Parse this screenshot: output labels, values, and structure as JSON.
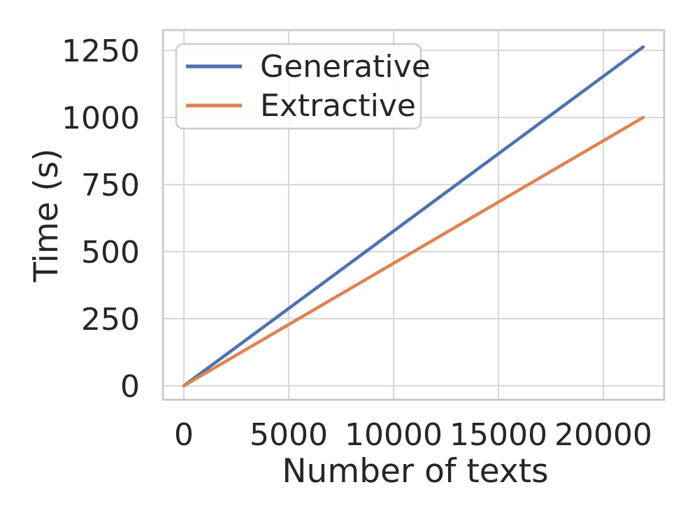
{
  "figure": {
    "background_color": "#ffffff",
    "text_color": "#262626",
    "grid_color": "#d9d9d9",
    "spine_color": "#c9c9c9"
  },
  "chart_data": {
    "type": "line",
    "title": "",
    "xlabel": "Number of texts",
    "ylabel": "Time (s)",
    "x": [
      0,
      21900
    ],
    "series": [
      {
        "name": "Generative",
        "color": "#4c72b0",
        "values": [
          0,
          1263
        ]
      },
      {
        "name": "Extractive",
        "color": "#dd8452",
        "values": [
          0,
          1000
        ]
      }
    ],
    "xlim": [
      -1000,
      22900
    ],
    "ylim": [
      -52,
      1326
    ],
    "xticks": [
      0,
      5000,
      10000,
      15000,
      20000
    ],
    "yticks": [
      0,
      250,
      500,
      750,
      1000,
      1250
    ],
    "grid": true,
    "legend_position": "upper left"
  }
}
